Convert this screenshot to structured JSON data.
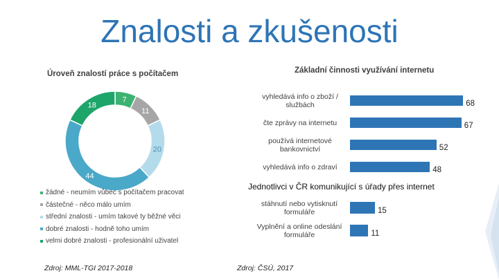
{
  "title": "Znalosti a zkušenosti",
  "chart_data": [
    {
      "type": "pie",
      "title": "Úroveň znalostí práce s počítačem",
      "categories": [
        "žádné - neumím vůbec s počítačem pracovat",
        "částečné - něco málo umím",
        "střední znalosti - umím takové ty běžné věci",
        "dobré znalosti - hodně toho umím",
        "velmi dobré znalosti - profesionální uživatel"
      ],
      "values": [
        7,
        11,
        20,
        44,
        18
      ],
      "colors": [
        "#3cb371",
        "#a6a6a6",
        "#b4dbeb",
        "#4aa8c8",
        "#1ea56a"
      ],
      "value_labels": [
        "7",
        "11",
        "20",
        "44",
        "18"
      ],
      "source": "Zdroj: MML-TGI 2017-2018"
    },
    {
      "type": "bar",
      "orientation": "horizontal",
      "title": "Základní činnosti využívání internetu",
      "categories": [
        "vyhledává info o zboží / službách",
        "čte zprávy na internetu",
        "používá internetové bankovnictví",
        "vyhledává info o zdraví"
      ],
      "values": [
        68,
        67,
        52,
        48
      ],
      "value_labels": [
        "68",
        "67",
        "52",
        "48"
      ],
      "color": "#2e75b6"
    },
    {
      "type": "bar",
      "orientation": "horizontal",
      "title": "Jednotlivci v ČR komunikující s úřady přes internet",
      "categories": [
        "stáhnutí nebo vytisknutí formuláře",
        "Vyplnění a online odeslání formuláře"
      ],
      "values": [
        15,
        11
      ],
      "value_labels": [
        "15",
        "11"
      ],
      "color": "#2e75b6",
      "source": "Zdroj: ČSÚ, 2017"
    }
  ]
}
